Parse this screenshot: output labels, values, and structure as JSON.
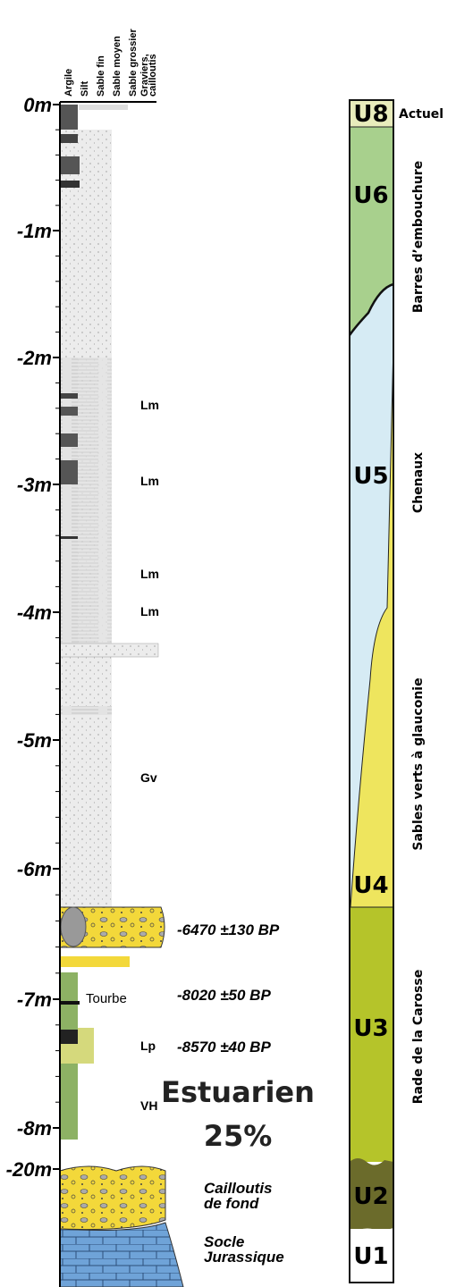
{
  "grain_headers": [
    {
      "lines": [
        "Argile"
      ]
    },
    {
      "lines": [
        "Silt"
      ]
    },
    {
      "lines": [
        "Sable fin"
      ]
    },
    {
      "lines": [
        "Sable moyen"
      ]
    },
    {
      "lines": [
        "Sable grossier"
      ]
    },
    {
      "lines": [
        "Graviers,",
        "cailloutis"
      ]
    }
  ],
  "depth_labels": [
    "0m",
    "-1m",
    "-2m",
    "-3m",
    "-4m",
    "-5m",
    "-6m",
    "-7m",
    "-8m",
    "-20m"
  ],
  "facies_labels": [
    "Lm",
    "Lm",
    "Lm",
    "Lm",
    "Gv",
    "Tourbe",
    "Lp",
    "VH"
  ],
  "dates": [
    "-6470 ±130 BP",
    "-8020 ±50 BP",
    "-8570 ±40 BP"
  ],
  "basal_labels": [
    {
      "lines": [
        "Cailloutis",
        "de fond"
      ]
    },
    {
      "lines": [
        "Socle",
        "Jurassique"
      ]
    }
  ],
  "overlay": {
    "lines": [
      "Estuarien",
      "25%"
    ]
  },
  "units": [
    {
      "code": "U8",
      "name": "Actuel"
    },
    {
      "code": "U6",
      "name": "Barres d’embouchure"
    },
    {
      "code": "U5",
      "name": "Chenaux"
    },
    {
      "code": "U4",
      "name": "Sables verts à glauconie"
    },
    {
      "code": "U3",
      "name": "Rade de la Carosse"
    },
    {
      "code": "U2"
    },
    {
      "code": "U1"
    }
  ]
}
